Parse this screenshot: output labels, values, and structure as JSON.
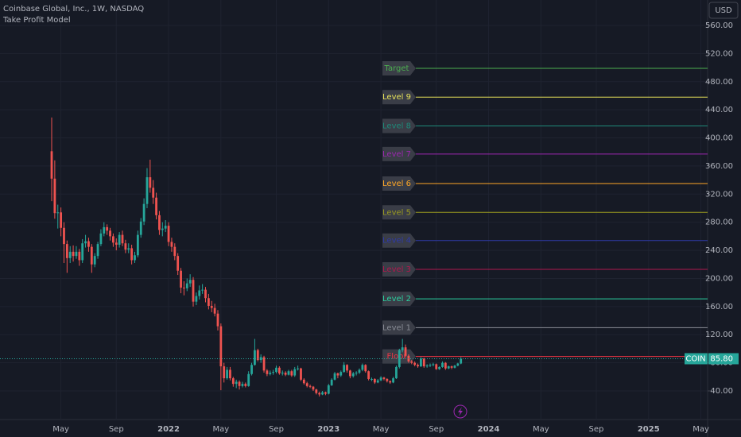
{
  "chart_data": {
    "type": "candlestick",
    "title": "Coinbase Global, Inc., 1W, NASDAQ",
    "subtitle": "Take Profit Model",
    "currency": "USD",
    "symbol": "COIN",
    "last": 85.8,
    "last_label": "85.80",
    "up_color": "#26a69a",
    "down_color": "#ef5350",
    "grid": true,
    "ylim": [
      40,
      560
    ],
    "yticks": [
      {
        "value": 40,
        "label": "40.00"
      },
      {
        "value": 80,
        "label": "80.00"
      },
      {
        "value": 120,
        "label": "120.00"
      },
      {
        "value": 160,
        "label": "160.00"
      },
      {
        "value": 200,
        "label": "200.00"
      },
      {
        "value": 240,
        "label": "240.00"
      },
      {
        "value": 280,
        "label": "280.00"
      },
      {
        "value": 320,
        "label": "320.00"
      },
      {
        "value": 360,
        "label": "360.00"
      },
      {
        "value": 400,
        "label": "400.00"
      },
      {
        "value": 440,
        "label": "440.00"
      },
      {
        "value": 480,
        "label": "480.00"
      },
      {
        "value": 520,
        "label": "520.00"
      },
      {
        "value": 560,
        "label": "560.00"
      }
    ],
    "levels": [
      {
        "name": "Target",
        "value": 499,
        "color": "#4caf50"
      },
      {
        "name": "Level 9",
        "value": 458,
        "color": "#e8e35a"
      },
      {
        "name": "Level 8",
        "value": 417,
        "color": "#1e8a7a"
      },
      {
        "name": "Level 7",
        "value": 377,
        "color": "#9c27b0"
      },
      {
        "name": "Level 6",
        "value": 335,
        "color": "#ffa726"
      },
      {
        "name": "Level 5",
        "value": 294,
        "color": "#9a9a20"
      },
      {
        "name": "Level 4",
        "value": 254,
        "color": "#2e3aa8"
      },
      {
        "name": "Level 3",
        "value": 213,
        "color": "#b0184e"
      },
      {
        "name": "Level 2",
        "value": 171,
        "color": "#2ad1a0"
      },
      {
        "name": "Level 1",
        "value": 130,
        "color": "#8a8d96"
      },
      {
        "name": "Floor",
        "value": 89,
        "color": "#f23645"
      }
    ],
    "categories": [
      null,
      null,
      null,
      "May",
      null,
      null,
      null,
      null,
      null,
      null,
      null,
      null,
      null,
      null,
      null,
      null,
      null,
      null,
      null,
      null,
      null,
      "Sep",
      null,
      null,
      null,
      null,
      null,
      null,
      null,
      null,
      null,
      null,
      null,
      null,
      null,
      null,
      null,
      null,
      "2022",
      null,
      null,
      null,
      null,
      null,
      null,
      null,
      null,
      null,
      null,
      null,
      null,
      null,
      null,
      null,
      null,
      "May",
      null,
      null,
      null,
      null,
      null,
      null,
      null,
      null,
      null,
      null,
      null,
      null,
      null,
      null,
      null,
      null,
      null,
      "Sep",
      null,
      null,
      null,
      null,
      null,
      null,
      null,
      null,
      null,
      null,
      null,
      null,
      null,
      null,
      null,
      null,
      "2023",
      null,
      null,
      null,
      null,
      null,
      null,
      null,
      null,
      null,
      null,
      null,
      null,
      null,
      null,
      null,
      null,
      "May",
      null,
      null,
      null,
      null,
      null,
      null,
      null,
      null,
      null,
      null,
      null,
      null,
      null,
      null,
      null,
      null,
      null,
      "Sep",
      null,
      null,
      null,
      null,
      null,
      null,
      null,
      null,
      null,
      null,
      null,
      null,
      null,
      null,
      null,
      null,
      "2024",
      null,
      null,
      null,
      null,
      null,
      null,
      null,
      null,
      null,
      null,
      null,
      null,
      null,
      null,
      null,
      null,
      "May",
      null,
      null,
      null,
      null,
      null,
      null,
      null,
      null,
      null,
      null,
      null,
      null,
      null,
      null,
      null,
      null,
      null,
      "Sep",
      null,
      null,
      null,
      null,
      null,
      null,
      null,
      null,
      null,
      null,
      null,
      null,
      null,
      null,
      null,
      null,
      "2025",
      null,
      null,
      null,
      null,
      null,
      null,
      null,
      null,
      null,
      null,
      null,
      null,
      null,
      null,
      null,
      null,
      "May"
    ],
    "ohlc": [
      [
        381,
        429,
        310,
        342
      ],
      [
        342,
        368,
        285,
        293
      ],
      [
        293,
        305,
        271,
        294
      ],
      [
        294,
        301,
        260,
        272
      ],
      [
        272,
        280,
        222,
        249
      ],
      [
        249,
        254,
        208,
        229
      ],
      [
        229,
        246,
        222,
        238
      ],
      [
        238,
        247,
        224,
        232
      ],
      [
        232,
        246,
        228,
        238
      ],
      [
        238,
        242,
        218,
        226
      ],
      [
        226,
        256,
        222,
        250
      ],
      [
        250,
        262,
        244,
        253
      ],
      [
        253,
        258,
        238,
        245
      ],
      [
        245,
        249,
        208,
        220
      ],
      [
        220,
        236,
        216,
        232
      ],
      [
        232,
        252,
        228,
        249
      ],
      [
        249,
        270,
        246,
        264
      ],
      [
        264,
        280,
        260,
        273
      ],
      [
        273,
        277,
        262,
        268
      ],
      [
        268,
        272,
        254,
        260
      ],
      [
        260,
        264,
        245,
        251
      ],
      [
        251,
        257,
        240,
        248
      ],
      [
        248,
        266,
        244,
        262
      ],
      [
        262,
        268,
        246,
        250
      ],
      [
        250,
        255,
        236,
        241
      ],
      [
        241,
        250,
        236,
        243
      ],
      [
        243,
        248,
        220,
        226
      ],
      [
        226,
        238,
        222,
        233
      ],
      [
        233,
        268,
        230,
        262
      ],
      [
        262,
        286,
        258,
        281
      ],
      [
        281,
        314,
        276,
        306
      ],
      [
        306,
        357,
        300,
        344
      ],
      [
        344,
        369,
        322,
        329
      ],
      [
        329,
        340,
        306,
        315
      ],
      [
        315,
        322,
        284,
        290
      ],
      [
        290,
        296,
        262,
        269
      ],
      [
        269,
        280,
        260,
        271
      ],
      [
        271,
        283,
        266,
        275
      ],
      [
        275,
        280,
        246,
        252
      ],
      [
        252,
        258,
        238,
        245
      ],
      [
        245,
        250,
        226,
        232
      ],
      [
        232,
        236,
        205,
        211
      ],
      [
        211,
        215,
        179,
        187
      ],
      [
        187,
        196,
        176,
        186
      ],
      [
        186,
        200,
        182,
        193
      ],
      [
        193,
        206,
        188,
        198
      ],
      [
        198,
        202,
        160,
        167
      ],
      [
        167,
        180,
        162,
        175
      ],
      [
        175,
        190,
        170,
        183
      ],
      [
        183,
        192,
        178,
        184
      ],
      [
        184,
        188,
        166,
        172
      ],
      [
        172,
        178,
        156,
        161
      ],
      [
        161,
        168,
        152,
        158
      ],
      [
        158,
        164,
        146,
        150
      ],
      [
        150,
        155,
        126,
        132
      ],
      [
        132,
        136,
        41,
        75
      ],
      [
        75,
        80,
        52,
        58
      ],
      [
        58,
        74,
        56,
        70
      ],
      [
        70,
        74,
        55,
        58
      ],
      [
        58,
        60,
        46,
        50
      ],
      [
        50,
        56,
        44,
        53
      ],
      [
        53,
        55,
        42,
        47
      ],
      [
        47,
        53,
        45,
        50
      ],
      [
        50,
        52,
        45,
        47
      ],
      [
        47,
        68,
        46,
        64
      ],
      [
        64,
        80,
        62,
        77
      ],
      [
        77,
        114,
        76,
        98
      ],
      [
        98,
        100,
        82,
        84
      ],
      [
        84,
        92,
        80,
        88
      ],
      [
        88,
        90,
        66,
        69
      ],
      [
        69,
        71,
        61,
        64
      ],
      [
        64,
        69,
        62,
        66
      ],
      [
        66,
        70,
        63,
        67
      ],
      [
        67,
        76,
        65,
        73
      ],
      [
        73,
        75,
        63,
        65
      ],
      [
        65,
        69,
        62,
        66
      ],
      [
        66,
        68,
        61,
        63
      ],
      [
        63,
        70,
        62,
        68
      ],
      [
        68,
        70,
        60,
        62
      ],
      [
        62,
        74,
        60,
        71
      ],
      [
        71,
        76,
        69,
        72
      ],
      [
        72,
        73,
        54,
        56
      ],
      [
        56,
        58,
        49,
        51
      ],
      [
        51,
        53,
        45,
        47
      ],
      [
        47,
        49,
        44,
        46
      ],
      [
        46,
        47,
        40,
        42
      ],
      [
        42,
        43,
        35,
        37
      ],
      [
        37,
        39,
        32,
        35
      ],
      [
        35,
        40,
        34,
        38
      ],
      [
        38,
        39,
        34,
        36
      ],
      [
        36,
        50,
        35,
        48
      ],
      [
        48,
        58,
        47,
        56
      ],
      [
        56,
        67,
        55,
        65
      ],
      [
        65,
        66,
        58,
        62
      ],
      [
        62,
        69,
        60,
        67
      ],
      [
        67,
        81,
        66,
        77
      ],
      [
        77,
        78,
        66,
        69
      ],
      [
        69,
        70,
        58,
        61
      ],
      [
        61,
        67,
        59,
        65
      ],
      [
        65,
        68,
        62,
        66
      ],
      [
        66,
        72,
        64,
        70
      ],
      [
        70,
        79,
        68,
        77
      ],
      [
        77,
        78,
        66,
        68
      ],
      [
        68,
        69,
        55,
        57
      ],
      [
        57,
        59,
        54,
        57
      ],
      [
        57,
        58,
        50,
        52
      ],
      [
        52,
        57,
        51,
        55
      ],
      [
        55,
        61,
        54,
        59
      ],
      [
        59,
        60,
        55,
        57
      ],
      [
        57,
        58,
        52,
        54
      ],
      [
        54,
        55,
        50,
        52
      ],
      [
        52,
        60,
        51,
        58
      ],
      [
        58,
        76,
        57,
        74
      ],
      [
        74,
        100,
        72,
        98
      ],
      [
        98,
        114,
        95,
        102
      ],
      [
        102,
        106,
        88,
        90
      ],
      [
        90,
        92,
        80,
        82
      ],
      [
        82,
        84,
        78,
        80
      ],
      [
        80,
        82,
        75,
        77
      ],
      [
        77,
        79,
        73,
        75
      ],
      [
        75,
        88,
        74,
        86
      ],
      [
        86,
        87,
        73,
        75
      ],
      [
        75,
        78,
        73,
        76
      ],
      [
        76,
        79,
        74,
        77
      ],
      [
        77,
        80,
        75,
        78
      ],
      [
        78,
        79,
        70,
        71
      ],
      [
        71,
        75,
        70,
        74
      ],
      [
        74,
        82,
        73,
        80
      ],
      [
        80,
        81,
        70,
        72
      ],
      [
        72,
        76,
        71,
        75
      ],
      [
        75,
        76,
        71,
        73
      ],
      [
        73,
        77,
        72,
        76
      ],
      [
        76,
        80,
        75,
        79
      ],
      [
        79,
        88,
        78,
        85.8
      ],
      null,
      null,
      null,
      null,
      null,
      null,
      null,
      null,
      null,
      null,
      null,
      null,
      null,
      null,
      null,
      null,
      null,
      null,
      null,
      null,
      null,
      null,
      null,
      null,
      null,
      null,
      null,
      null,
      null,
      null,
      null,
      null,
      null,
      null,
      null,
      null,
      null,
      null,
      null,
      null,
      null,
      null,
      null,
      null,
      null,
      null,
      null,
      null,
      null,
      null,
      null,
      null,
      null,
      null,
      null,
      null,
      null,
      null,
      null,
      null,
      null,
      null,
      null,
      null,
      null,
      null,
      null,
      null,
      null,
      null,
      null,
      null,
      null,
      null,
      null,
      null,
      null,
      null
    ]
  }
}
